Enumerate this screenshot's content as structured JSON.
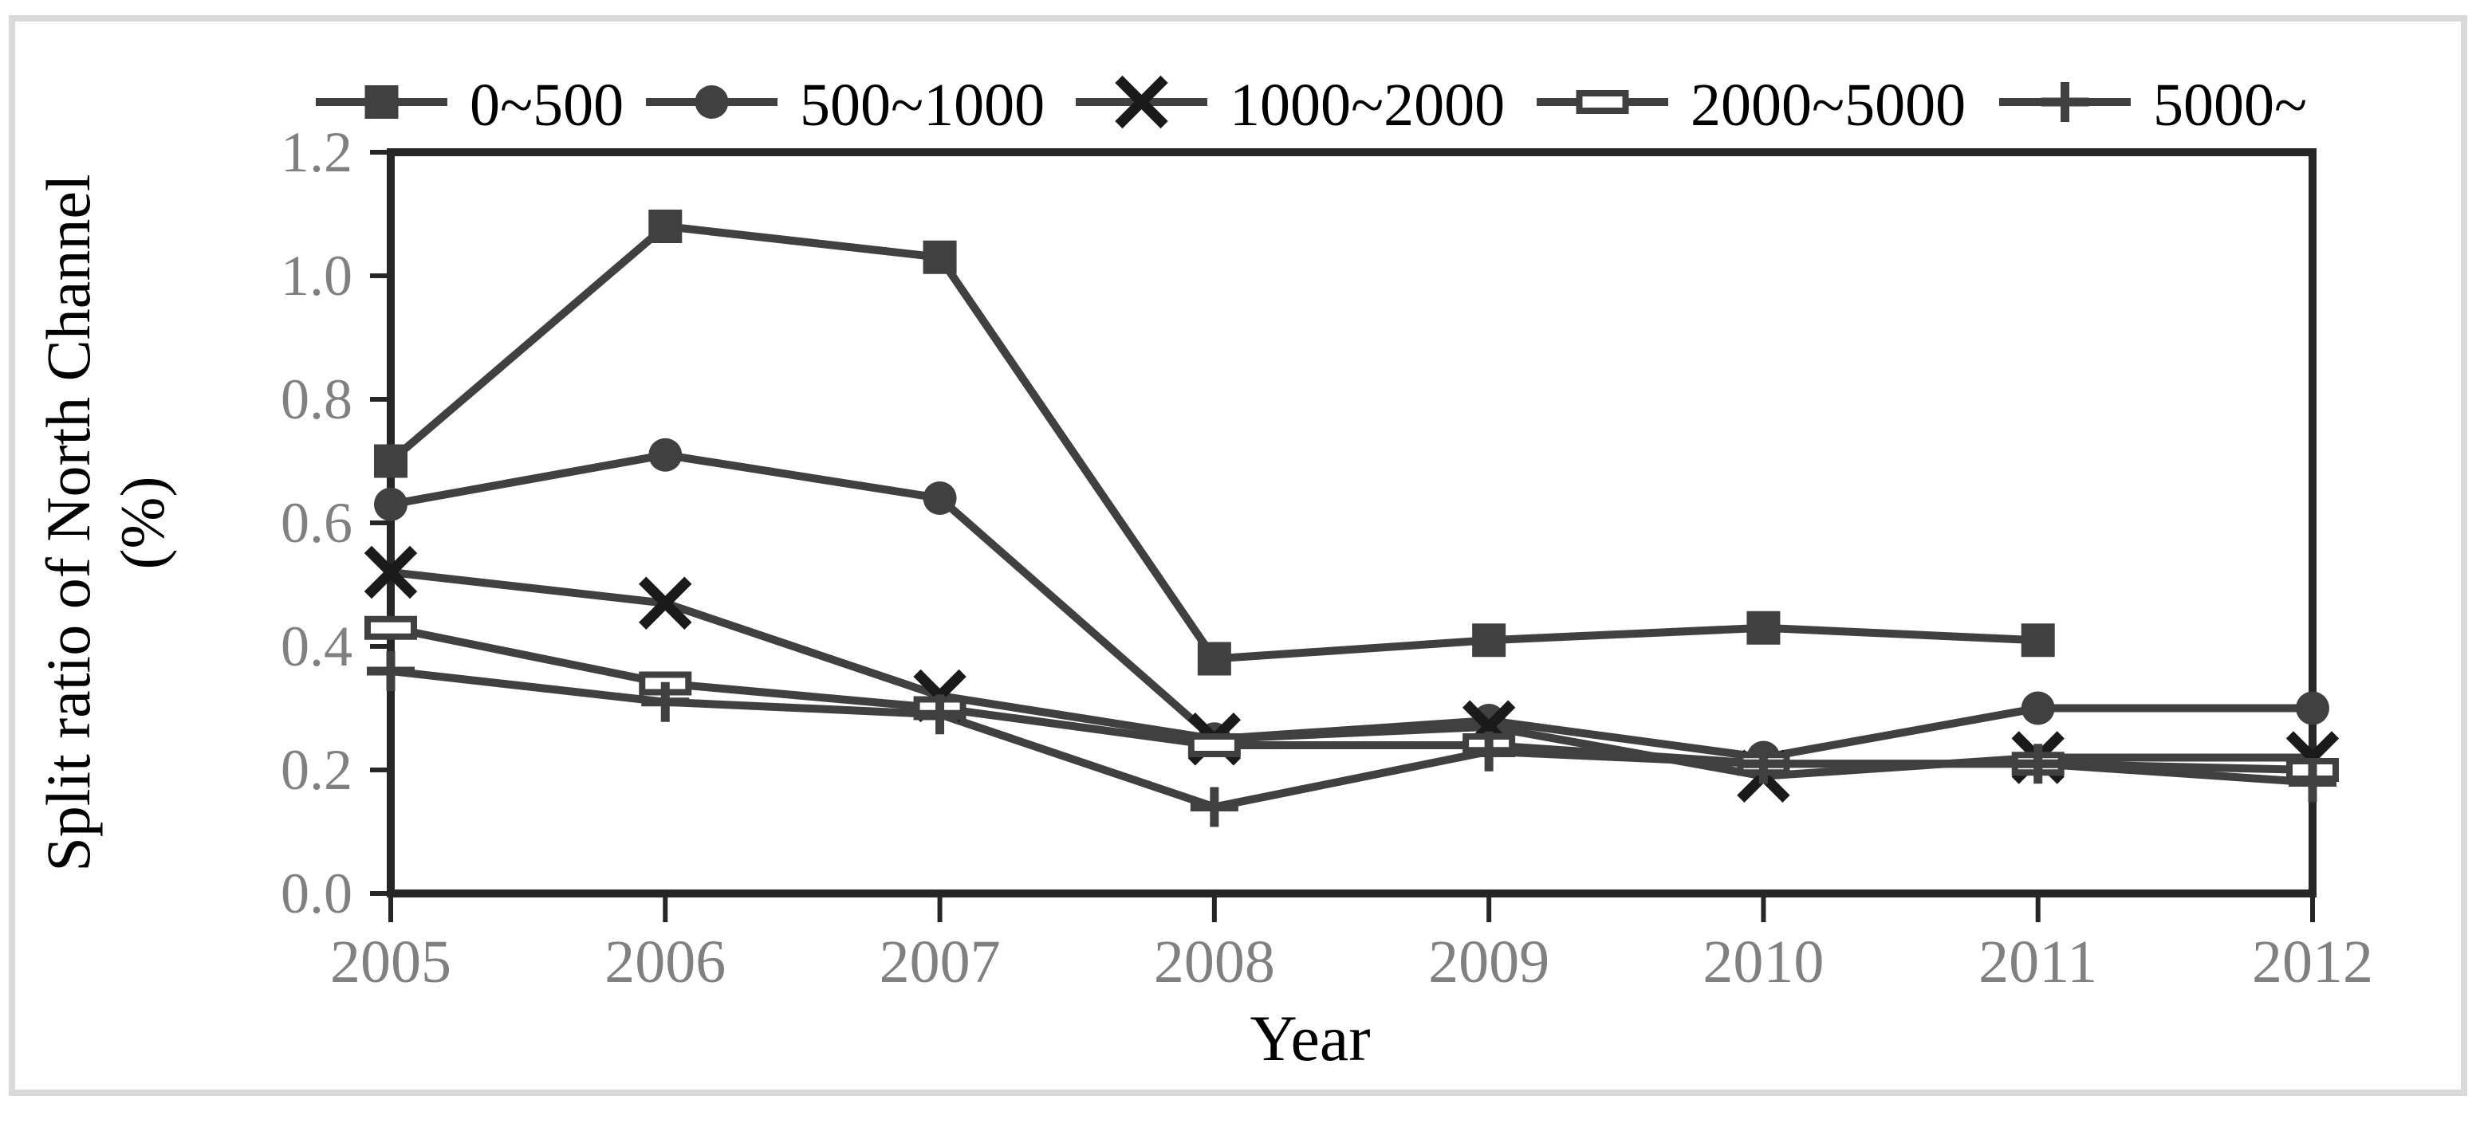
{
  "figure": {
    "background": "#ffffff",
    "frame_color": "#d9d9d9"
  },
  "colors": {
    "series_line": "#404040",
    "x_marker": "#1a1a1a",
    "axis": "#262626",
    "tick_label": "#808080",
    "text": "#000000",
    "marker_fill_open": "#ffffff"
  },
  "chart_data": {
    "type": "line",
    "title": "",
    "xlabel": "Year",
    "ylabel": "Split ratio of North Channel (%)",
    "ylabel_lines": [
      "Split ratio of North Channel",
      "(%)"
    ],
    "x": [
      "2005",
      "2006",
      "2007",
      "2008",
      "2009",
      "2010",
      "2011",
      "2012"
    ],
    "ylim": [
      0,
      1.2
    ],
    "ytick_labels": [
      "0.0",
      "0.2",
      "0.4",
      "0.6",
      "0.8",
      "1.0",
      "1.2"
    ],
    "ytick_values": [
      0,
      0.2,
      0.4,
      0.6,
      0.8,
      1.0,
      1.2
    ],
    "grid": false,
    "legend_position": "top",
    "series": [
      {
        "name": "0~500",
        "marker": "square",
        "values": [
          0.7,
          1.08,
          1.03,
          0.38,
          0.41,
          0.43,
          0.41,
          null
        ]
      },
      {
        "name": "500~1000",
        "marker": "circle",
        "values": [
          0.63,
          0.71,
          0.64,
          0.25,
          0.28,
          0.22,
          0.3,
          0.3
        ]
      },
      {
        "name": "1000~2000",
        "marker": "x",
        "values": [
          0.52,
          0.47,
          0.32,
          0.25,
          0.27,
          0.19,
          0.22,
          0.22
        ]
      },
      {
        "name": "2000~5000",
        "marker": "dash",
        "values": [
          0.43,
          0.34,
          0.3,
          0.24,
          0.24,
          0.21,
          0.21,
          0.2
        ]
      },
      {
        "name": "5000~",
        "marker": "plus",
        "values": [
          0.36,
          0.31,
          0.29,
          0.14,
          0.23,
          0.21,
          0.21,
          0.18
        ]
      }
    ]
  }
}
